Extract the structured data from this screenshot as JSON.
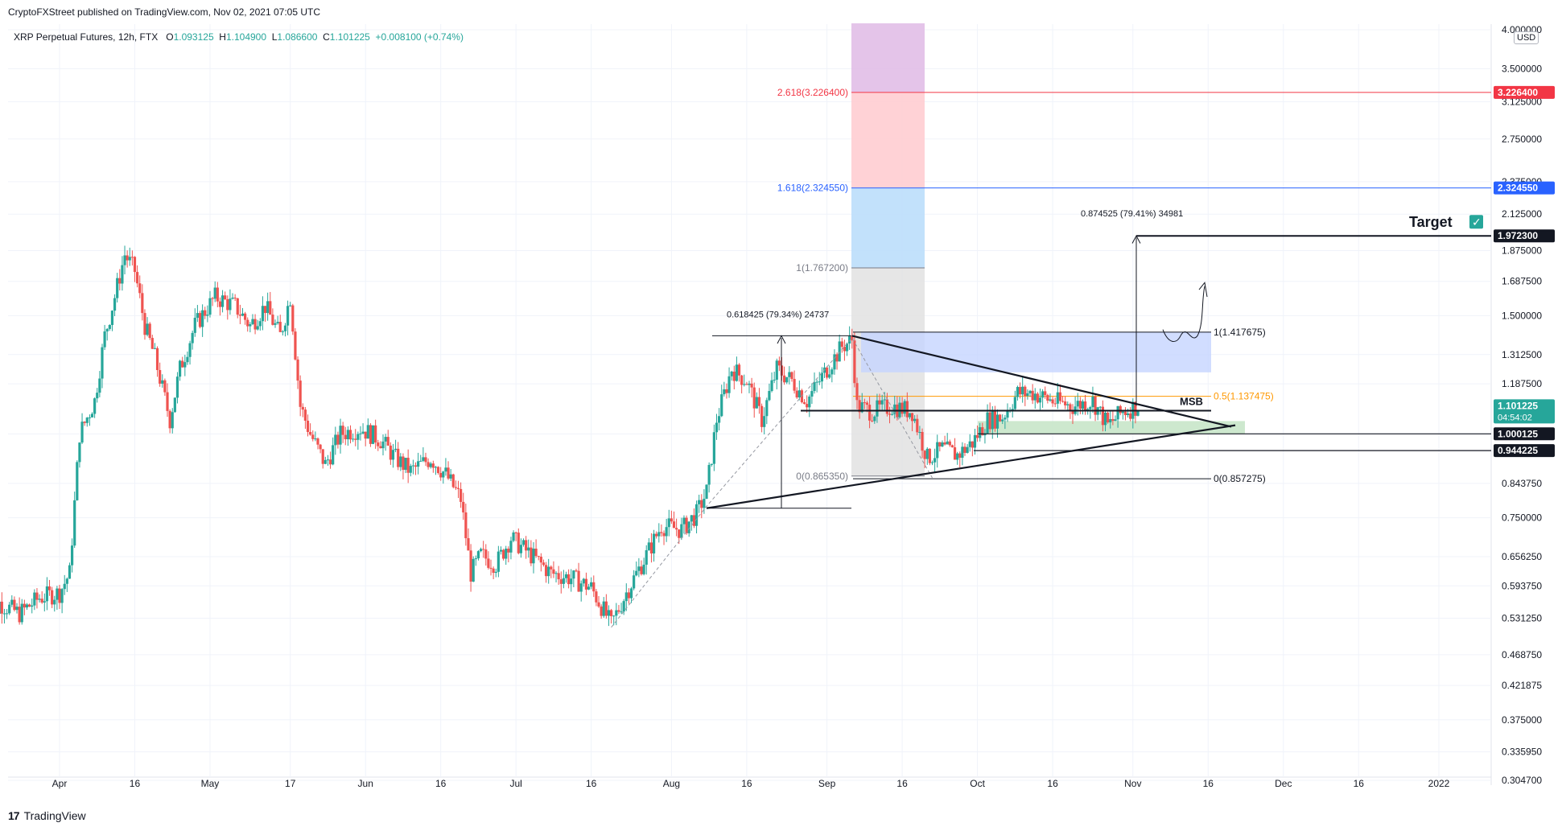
{
  "header": {
    "published": "CryptoFXStreet published on TradingView.com, Nov 02, 2021 07:05 UTC",
    "symbol": "XRP Perpetual Futures, 12h, FTX",
    "o_label": "O",
    "o": "1.093125",
    "h_label": "H",
    "h": "1.104900",
    "l_label": "L",
    "l": "1.086600",
    "c_label": "C",
    "c": "1.101225",
    "change": "+0.008100 (+0.74%)",
    "currency": "USD"
  },
  "footer": {
    "brand": "TradingView"
  },
  "chart_data": {
    "type": "candlestick",
    "scale": "log",
    "ylim": [
      0.28,
      4.0
    ],
    "y_ticks": [
      "4.000000",
      "3.500000",
      "3.125000",
      "2.750000",
      "2.375000",
      "2.125000",
      "1.875000",
      "1.687500",
      "1.500000",
      "1.312500",
      "1.187500",
      "1.000000",
      "0.843750",
      "0.750000",
      "0.656250",
      "0.593750",
      "0.531250",
      "0.468750",
      "0.421875",
      "0.375000",
      "0.335950",
      "0.304700"
    ],
    "x_ticks": [
      {
        "label": "Apr",
        "date": "2021-04-01"
      },
      {
        "label": "16",
        "date": "2021-04-16"
      },
      {
        "label": "May",
        "date": "2021-05-01"
      },
      {
        "label": "17",
        "date": "2021-05-17"
      },
      {
        "label": "Jun",
        "date": "2021-06-01"
      },
      {
        "label": "16",
        "date": "2021-06-16"
      },
      {
        "label": "Jul",
        "date": "2021-07-01"
      },
      {
        "label": "16",
        "date": "2021-07-16"
      },
      {
        "label": "Aug",
        "date": "2021-08-01"
      },
      {
        "label": "16",
        "date": "2021-08-16"
      },
      {
        "label": "Sep",
        "date": "2021-09-01"
      },
      {
        "label": "16",
        "date": "2021-09-16"
      },
      {
        "label": "Oct",
        "date": "2021-10-01"
      },
      {
        "label": "16",
        "date": "2021-10-16"
      },
      {
        "label": "Nov",
        "date": "2021-11-01"
      },
      {
        "label": "16",
        "date": "2021-11-16"
      },
      {
        "label": "Dec",
        "date": "2021-12-01"
      },
      {
        "label": "16",
        "date": "2021-12-16"
      },
      {
        "label": "2022",
        "date": "2022-01-01"
      }
    ],
    "price_path": [
      {
        "date": "2021-03-17",
        "close": 0.5
      },
      {
        "date": "2021-03-20",
        "close": 0.56
      },
      {
        "date": "2021-03-24",
        "close": 0.54
      },
      {
        "date": "2021-03-28",
        "close": 0.57
      },
      {
        "date": "2021-04-01",
        "close": 0.58
      },
      {
        "date": "2021-04-03",
        "close": 0.62
      },
      {
        "date": "2021-04-05",
        "close": 1.0
      },
      {
        "date": "2021-04-08",
        "close": 1.12
      },
      {
        "date": "2021-04-10",
        "close": 1.4
      },
      {
        "date": "2021-04-12",
        "close": 1.6
      },
      {
        "date": "2021-04-14",
        "close": 1.85
      },
      {
        "date": "2021-04-16",
        "close": 1.75
      },
      {
        "date": "2021-04-18",
        "close": 1.45
      },
      {
        "date": "2021-04-20",
        "close": 1.3
      },
      {
        "date": "2021-04-23",
        "close": 1.05
      },
      {
        "date": "2021-04-25",
        "close": 1.25
      },
      {
        "date": "2021-04-28",
        "close": 1.45
      },
      {
        "date": "2021-05-02",
        "close": 1.6
      },
      {
        "date": "2021-05-06",
        "close": 1.55
      },
      {
        "date": "2021-05-09",
        "close": 1.45
      },
      {
        "date": "2021-05-12",
        "close": 1.55
      },
      {
        "date": "2021-05-15",
        "close": 1.4
      },
      {
        "date": "2021-05-17",
        "close": 1.6
      },
      {
        "date": "2021-05-19",
        "close": 1.1
      },
      {
        "date": "2021-05-21",
        "close": 1.0
      },
      {
        "date": "2021-05-24",
        "close": 0.9
      },
      {
        "date": "2021-05-27",
        "close": 1.0
      },
      {
        "date": "2021-05-31",
        "close": 1.02
      },
      {
        "date": "2021-06-04",
        "close": 0.98
      },
      {
        "date": "2021-06-07",
        "close": 0.92
      },
      {
        "date": "2021-06-10",
        "close": 0.88
      },
      {
        "date": "2021-06-14",
        "close": 0.92
      },
      {
        "date": "2021-06-17",
        "close": 0.87
      },
      {
        "date": "2021-06-20",
        "close": 0.8
      },
      {
        "date": "2021-06-22",
        "close": 0.62
      },
      {
        "date": "2021-06-24",
        "close": 0.66
      },
      {
        "date": "2021-06-27",
        "close": 0.64
      },
      {
        "date": "2021-06-30",
        "close": 0.7
      },
      {
        "date": "2021-07-04",
        "close": 0.66
      },
      {
        "date": "2021-07-08",
        "close": 0.62
      },
      {
        "date": "2021-07-12",
        "close": 0.61
      },
      {
        "date": "2021-07-16",
        "close": 0.59
      },
      {
        "date": "2021-07-20",
        "close": 0.52
      },
      {
        "date": "2021-07-23",
        "close": 0.58
      },
      {
        "date": "2021-07-27",
        "close": 0.66
      },
      {
        "date": "2021-07-30",
        "close": 0.73
      },
      {
        "date": "2021-08-03",
        "close": 0.72
      },
      {
        "date": "2021-08-06",
        "close": 0.76
      },
      {
        "date": "2021-08-08",
        "close": 0.82
      },
      {
        "date": "2021-08-10",
        "close": 1.05
      },
      {
        "date": "2021-08-13",
        "close": 1.25
      },
      {
        "date": "2021-08-16",
        "close": 1.2
      },
      {
        "date": "2021-08-19",
        "close": 1.05
      },
      {
        "date": "2021-08-22",
        "close": 1.25
      },
      {
        "date": "2021-08-25",
        "close": 1.2
      },
      {
        "date": "2021-08-28",
        "close": 1.12
      },
      {
        "date": "2021-09-01",
        "close": 1.25
      },
      {
        "date": "2021-09-04",
        "close": 1.35
      },
      {
        "date": "2021-09-06",
        "close": 1.38
      },
      {
        "date": "2021-09-07",
        "close": 1.1
      },
      {
        "date": "2021-09-10",
        "close": 1.08
      },
      {
        "date": "2021-09-14",
        "close": 1.1
      },
      {
        "date": "2021-09-18",
        "close": 1.08
      },
      {
        "date": "2021-09-21",
        "close": 0.92
      },
      {
        "date": "2021-09-24",
        "close": 0.95
      },
      {
        "date": "2021-09-27",
        "close": 0.93
      },
      {
        "date": "2021-09-30",
        "close": 0.97
      },
      {
        "date": "2021-10-03",
        "close": 1.05
      },
      {
        "date": "2021-10-06",
        "close": 1.06
      },
      {
        "date": "2021-10-09",
        "close": 1.15
      },
      {
        "date": "2021-10-12",
        "close": 1.15
      },
      {
        "date": "2021-10-16",
        "close": 1.12
      },
      {
        "date": "2021-10-20",
        "close": 1.1
      },
      {
        "date": "2021-10-24",
        "close": 1.12
      },
      {
        "date": "2021-10-27",
        "close": 1.03
      },
      {
        "date": "2021-10-30",
        "close": 1.08
      },
      {
        "date": "2021-11-02",
        "close": 1.101225
      }
    ],
    "fib_levels": [
      {
        "label": "2.618(3.226400)",
        "value": 3.2264,
        "color": "#f23645"
      },
      {
        "label": "1.618(2.324550)",
        "value": 2.32455,
        "color": "#2962ff"
      },
      {
        "label": "1(1.767200)",
        "value": 1.7672,
        "color": "#787b86"
      },
      {
        "label": "0(0.865350)",
        "value": 0.86535,
        "color": "#787b86"
      }
    ],
    "channel_levels": [
      {
        "label": "1(1.417675)",
        "value": 1.417675,
        "color": "#131722"
      },
      {
        "label": "0.5(1.137475)",
        "value": 1.137475,
        "color": "#ff9800"
      },
      {
        "label": "0(0.857275)",
        "value": 0.857275,
        "color": "#131722"
      }
    ],
    "annotations": {
      "measure_left": "0.618425 (79.34%) 24737",
      "measure_right": "0.874525 (79.41%) 34981",
      "msb": "MSB",
      "target": "Target",
      "target_check": "✓"
    },
    "price_labels": [
      {
        "value": 3.2264,
        "text": "3.226400",
        "bg": "#f23645"
      },
      {
        "value": 2.32455,
        "text": "2.324550",
        "bg": "#2962ff"
      },
      {
        "value": 1.9723,
        "text": "1.972300",
        "bg": "#131722"
      },
      {
        "value": 1.101225,
        "text": "1.101225",
        "bg": "#26a69a",
        "sub": "04:54:02"
      },
      {
        "value": 1.000125,
        "text": "1.000125",
        "bg": "#131722"
      },
      {
        "value": 0.944225,
        "text": "0.944225",
        "bg": "#131722"
      }
    ],
    "colors": {
      "up": "#26a69a",
      "down": "#ef5350",
      "fib_purple": "#e1bee7",
      "fib_red": "#ffcdd2",
      "fib_blue": "#bbdefb",
      "fib_gray": "#e0e0e0",
      "zone_blue": "#c5d5ff",
      "zone_green": "#c8e6c9"
    }
  }
}
